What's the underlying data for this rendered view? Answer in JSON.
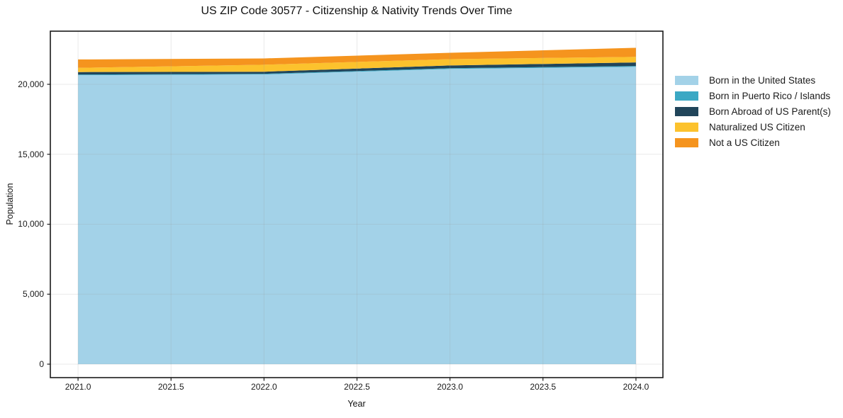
{
  "title": "US ZIP Code 30577 - Citizenship & Nativity Trends Over Time",
  "chart_data": {
    "type": "area",
    "stacked": true,
    "title": "US ZIP Code 30577 - Citizenship & Nativity Trends Over Time",
    "xlabel": "Year",
    "ylabel": "Population",
    "x": [
      2021,
      2022,
      2023,
      2024
    ],
    "series": [
      {
        "name": "Born in the United States",
        "color": "#a3d2e8",
        "values": [
          20650,
          20700,
          21100,
          21250
        ]
      },
      {
        "name": "Born in Puerto Rico / Islands",
        "color": "#3ba8c4",
        "values": [
          50,
          50,
          50,
          60
        ]
      },
      {
        "name": "Born Abroad of US Parent(s)",
        "color": "#21455a",
        "values": [
          175,
          150,
          200,
          250
        ]
      },
      {
        "name": "Naturalized US Citizen",
        "color": "#fcc22d",
        "values": [
          300,
          500,
          450,
          400
        ]
      },
      {
        "name": "Not a US Citizen",
        "color": "#f5941e",
        "values": [
          600,
          450,
          450,
          650
        ]
      }
    ],
    "totals": [
      21775,
      21850,
      22250,
      22610
    ],
    "xlim": [
      2020.851,
      2024.145
    ],
    "ylim": [
      -962,
      23797
    ],
    "xticks": {
      "values": [
        2021.0,
        2021.5,
        2022.0,
        2022.5,
        2023.0,
        2023.5,
        2024.0
      ],
      "labels": [
        "2021.0",
        "2021.5",
        "2022.0",
        "2022.5",
        "2023.0",
        "2023.5",
        "2024.0"
      ]
    },
    "yticks": {
      "values": [
        0,
        5000,
        10000,
        15000,
        20000
      ],
      "labels": [
        "0",
        "5,000",
        "10,000",
        "15,000",
        "20,000"
      ]
    },
    "grid": true,
    "legend_position": "right-outside",
    "colors": {
      "plot_border": "#1a1a1a",
      "grid": "#999999",
      "background": "#ffffff",
      "text": "#1a1a1a"
    }
  }
}
